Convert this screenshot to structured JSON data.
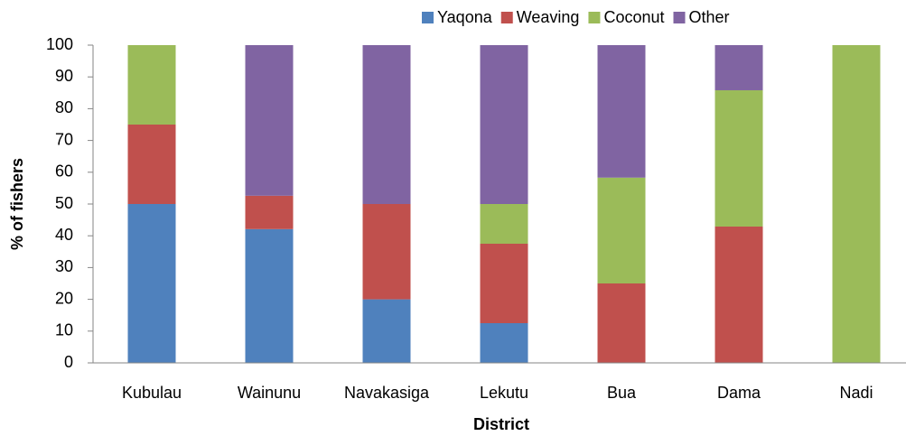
{
  "chart_data": {
    "type": "stacked_bar",
    "x_label": "District",
    "y_label": "% of fishers",
    "categories": [
      "Kubulau",
      "Wainunu",
      "Navakasiga",
      "Lekutu",
      "Bua",
      "Dama",
      "Nadi"
    ],
    "series": [
      {
        "name": "Yaqona",
        "color": "#4f81bd",
        "values": [
          50,
          42.1,
          20,
          12.5,
          0,
          0,
          0
        ]
      },
      {
        "name": "Weaving",
        "color": "#c0504d",
        "values": [
          25,
          10.5,
          30,
          25,
          25,
          42.9,
          0
        ]
      },
      {
        "name": "Coconut",
        "color": "#9bbb59",
        "values": [
          25,
          0,
          0,
          12.5,
          33.3,
          42.9,
          100
        ]
      },
      {
        "name": "Other",
        "color": "#8064a2",
        "values": [
          0,
          47.4,
          50,
          50,
          41.7,
          14.2,
          0
        ]
      }
    ],
    "ylim": [
      0,
      100
    ],
    "yticks": [
      0,
      10,
      20,
      30,
      40,
      50,
      60,
      70,
      80,
      90,
      100
    ],
    "legend": "top",
    "grid": false
  }
}
